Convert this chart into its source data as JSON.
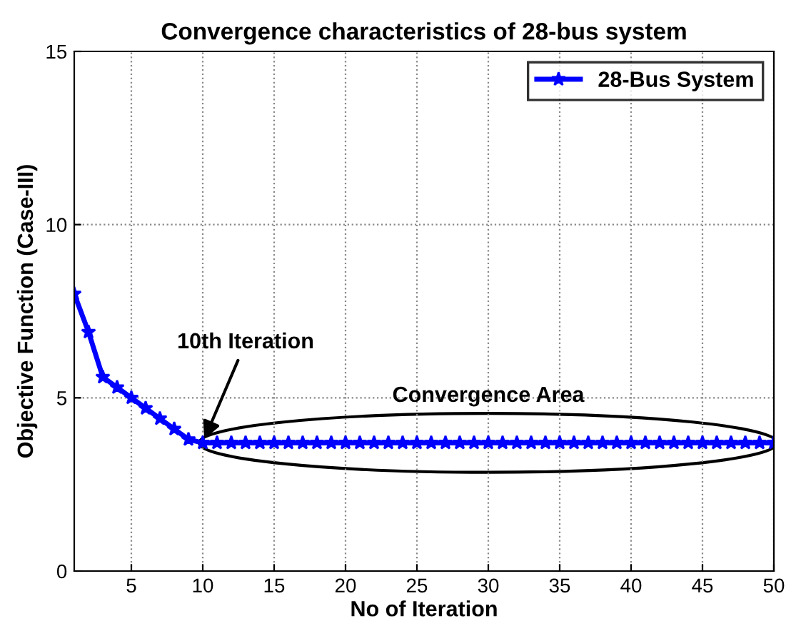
{
  "chart_data": {
    "type": "line",
    "title": "Convergence characteristics of 28-bus system",
    "xlabel": "No of Iteration",
    "ylabel": "Objective Function (Case-III)",
    "x": [
      1,
      2,
      3,
      4,
      5,
      6,
      7,
      8,
      9,
      10,
      11,
      12,
      13,
      14,
      15,
      16,
      17,
      18,
      19,
      20,
      21,
      22,
      23,
      24,
      25,
      26,
      27,
      28,
      29,
      30,
      31,
      32,
      33,
      34,
      35,
      36,
      37,
      38,
      39,
      40,
      41,
      42,
      43,
      44,
      45,
      46,
      47,
      48,
      49,
      50
    ],
    "series": [
      {
        "name": "28-Bus System",
        "color": "#0000ff",
        "values": [
          8.0,
          6.9,
          5.6,
          5.3,
          5.0,
          4.7,
          4.4,
          4.1,
          3.8,
          3.7,
          3.7,
          3.7,
          3.7,
          3.7,
          3.7,
          3.7,
          3.7,
          3.7,
          3.7,
          3.7,
          3.7,
          3.7,
          3.7,
          3.7,
          3.7,
          3.7,
          3.7,
          3.7,
          3.7,
          3.7,
          3.7,
          3.7,
          3.7,
          3.7,
          3.7,
          3.7,
          3.7,
          3.7,
          3.7,
          3.7,
          3.7,
          3.7,
          3.7,
          3.7,
          3.7,
          3.7,
          3.7,
          3.7,
          3.7,
          3.7
        ]
      }
    ],
    "annotations": [
      {
        "text": "10th Iteration",
        "x": 10,
        "y": 3.7
      },
      {
        "text": "Convergence Area",
        "x": 30,
        "y": 3.7
      }
    ],
    "xlim": [
      1,
      50
    ],
    "xticks": [
      5,
      10,
      15,
      20,
      25,
      30,
      35,
      40,
      45,
      50
    ],
    "ylim": [
      0,
      15
    ],
    "yticks": [
      0,
      5,
      10,
      15
    ],
    "grid": true,
    "legend": "top right",
    "marker": "star",
    "line_style": "solid"
  }
}
